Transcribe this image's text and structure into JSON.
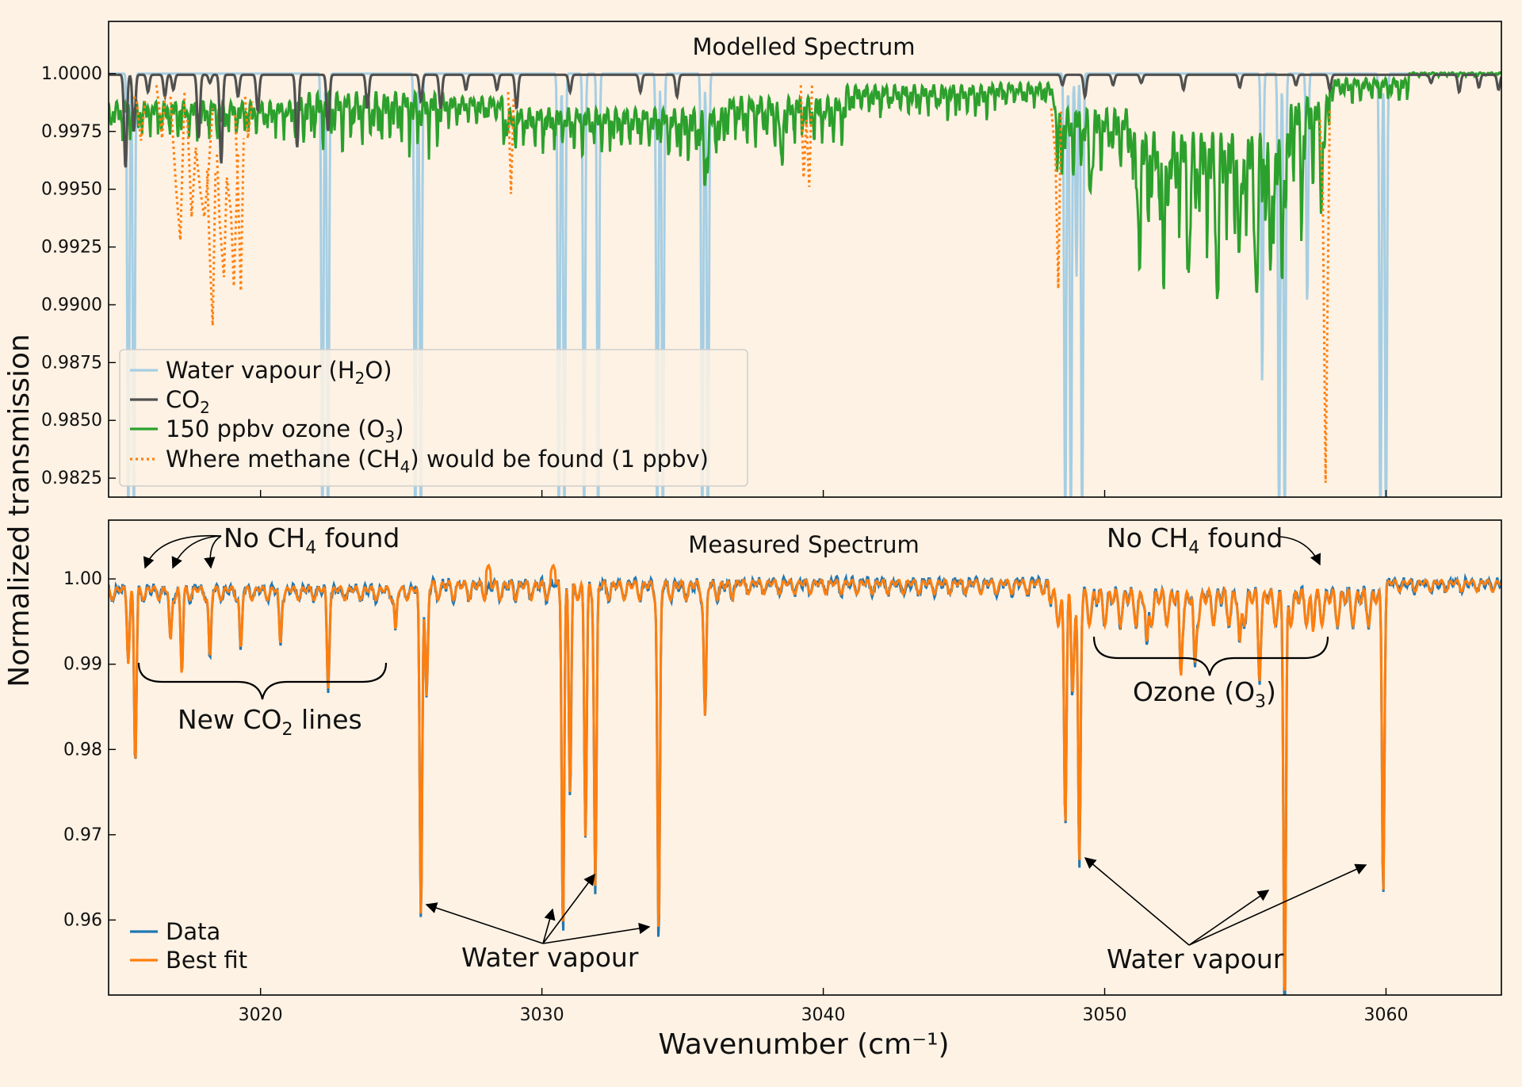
{
  "figure": {
    "background": "#fdf2e4",
    "ylabel": "Normalized transmission",
    "xlabel": "Wavenumber (cm⁻¹)"
  },
  "chart_data": [
    {
      "type": "line",
      "title": "Modelled Spectrum",
      "xlim": [
        3014.6,
        3064.1
      ],
      "ylim": [
        0.98168,
        1.00226
      ],
      "x_ticks": [
        3020,
        3030,
        3040,
        3050,
        3060
      ],
      "y_ticks": [
        1.0,
        0.9975,
        0.995,
        0.9925,
        0.99,
        0.9875,
        0.985,
        0.9825
      ],
      "y_tick_labels": [
        "1.0000",
        "0.9975",
        "0.9950",
        "0.9925",
        "0.9900",
        "0.9875",
        "0.9850",
        "0.9825"
      ],
      "x_tick_labels_shown": false,
      "grid": false,
      "legend_position": "bottom-left",
      "series": [
        {
          "name": "Water vapour (H₂O)",
          "color": "#a6cee3",
          "style": "solid",
          "baseline": 1.0,
          "lines": [
            [
              3015.3,
              0.98
            ],
            [
              3015.5,
              0.98
            ],
            [
              3022.2,
              0.98
            ],
            [
              3022.4,
              0.98
            ],
            [
              3025.5,
              0.98
            ],
            [
              3025.7,
              0.98
            ],
            [
              3030.6,
              0.98
            ],
            [
              3030.8,
              0.98
            ],
            [
              3031.5,
              0.98
            ],
            [
              3032.0,
              0.98
            ],
            [
              3034.1,
              0.98
            ],
            [
              3034.3,
              0.98
            ],
            [
              3035.7,
              0.98
            ],
            [
              3035.9,
              0.98
            ],
            [
              3048.6,
              0.98
            ],
            [
              3048.8,
              0.98
            ],
            [
              3049.0,
              0.9912
            ],
            [
              3049.2,
              0.98
            ],
            [
              3055.6,
              0.9866
            ],
            [
              3056.2,
              0.98
            ],
            [
              3056.4,
              0.98
            ],
            [
              3057.2,
              0.99
            ],
            [
              3059.8,
              0.98
            ],
            [
              3060.0,
              0.98
            ]
          ]
        },
        {
          "name": "CO₂",
          "color": "#505050",
          "style": "solid",
          "baseline": 0.99995,
          "lines": [
            [
              3015.2,
              0.9959
            ],
            [
              3015.5,
              0.9975
            ],
            [
              3016.0,
              0.9992
            ],
            [
              3016.6,
              0.999
            ],
            [
              3016.9,
              0.9993
            ],
            [
              3017.8,
              0.9972
            ],
            [
              3018.2,
              0.9996
            ],
            [
              3018.6,
              0.9961
            ],
            [
              3019.2,
              0.999
            ],
            [
              3019.9,
              0.9984
            ],
            [
              3021.3,
              0.9968
            ],
            [
              3022.4,
              0.9975
            ],
            [
              3023.8,
              0.9985
            ],
            [
              3025.7,
              0.9988
            ],
            [
              3026.4,
              0.9985
            ],
            [
              3027.3,
              0.9993
            ],
            [
              3028.4,
              0.9993
            ],
            [
              3029.1,
              0.9985
            ],
            [
              3031.0,
              0.9992
            ],
            [
              3033.5,
              0.9992
            ],
            [
              3034.8,
              0.999
            ],
            [
              3048.5,
              0.9995
            ],
            [
              3049.3,
              0.999
            ],
            [
              3050.3,
              0.9995
            ],
            [
              3051.3,
              0.9996
            ],
            [
              3052.8,
              0.9993
            ],
            [
              3054.8,
              0.9994
            ],
            [
              3056.8,
              0.9995
            ],
            [
              3058.0,
              0.9993
            ],
            [
              3061.6,
              0.9996
            ],
            [
              3062.6,
              0.9992
            ],
            [
              3063.3,
              0.9994
            ],
            [
              3064.0,
              0.9993
            ]
          ]
        },
        {
          "name": "150 ppbv ozone (O₃)",
          "color": "#2ca02c",
          "style": "solid",
          "regions": [
            [
              3014.6,
              3021.4,
              0.9968,
              0.9988
            ],
            [
              3021.4,
              3026.5,
              0.9962,
              0.9992
            ],
            [
              3026.5,
              3028.6,
              0.9975,
              0.999
            ],
            [
              3028.6,
              3034.4,
              0.9962,
              0.9985
            ],
            [
              3034.4,
              3036.5,
              0.9955,
              0.9985
            ],
            [
              3036.5,
              3040.8,
              0.9965,
              0.999
            ],
            [
              3040.8,
              3046.0,
              0.9978,
              0.9995
            ],
            [
              3046.0,
              3048.3,
              0.9982,
              0.9996
            ],
            [
              3048.3,
              3051.0,
              0.995,
              0.9985
            ],
            [
              3051.0,
              3056.6,
              0.992,
              0.9975
            ],
            [
              3056.6,
              3058.0,
              0.995,
              0.999
            ],
            [
              3058.0,
              3060.8,
              0.9985,
              0.9998
            ],
            [
              3060.8,
              3064.1,
              0.99985,
              1.00005
            ]
          ],
          "deep_lines": [
            [
              3035.8,
              0.995
            ],
            [
              3038.5,
              0.9955
            ],
            [
              3048.3,
              0.9962
            ],
            [
              3049.5,
              0.995
            ],
            [
              3051.2,
              0.9942
            ],
            [
              3052.1,
              0.9905
            ],
            [
              3053.0,
              0.992
            ],
            [
              3054.0,
              0.9904
            ],
            [
              3054.8,
              0.9922
            ],
            [
              3055.4,
              0.9895
            ],
            [
              3055.9,
              0.991
            ],
            [
              3056.3,
              0.993
            ],
            [
              3057.0,
              0.9938
            ],
            [
              3057.7,
              0.995
            ]
          ]
        },
        {
          "name": "Where methane (CH₄) would be found (1 ppbv)",
          "color": "#ff7f0e",
          "style": "dotted",
          "segments": [
            {
              "x": [
                3015.5,
                3015.6,
                3015.75,
                3015.9
              ],
              "y": [
                0.999,
                0.9988,
                0.9971,
                0.9988
              ]
            },
            {
              "x": [
                3016.3,
                3016.4,
                3016.5,
                3016.6
              ],
              "y": [
                0.9995,
                0.9985,
                0.9972,
                0.999
              ]
            },
            {
              "x": [
                3016.8,
                3017.0,
                3017.15,
                3017.3
              ],
              "y": [
                0.999,
                0.995,
                0.9928,
                0.9992
              ]
            },
            {
              "x": [
                3017.4,
                3017.55,
                3017.7,
                3017.85,
                3018.0,
                3018.15,
                3018.3
              ],
              "y": [
                0.998,
                0.9938,
                0.9968,
                0.995,
                0.9938,
                0.9958,
                0.9985
              ]
            },
            {
              "x": [
                3018.1,
                3018.2,
                3018.3,
                3018.4
              ],
              "y": [
                0.9958,
                0.992,
                0.9891,
                0.9958
              ]
            },
            {
              "x": [
                3018.45,
                3018.55,
                3018.7,
                3018.8,
                3018.95,
                3019.05,
                3019.2
              ],
              "y": [
                0.9965,
                0.9935,
                0.9912,
                0.9955,
                0.994,
                0.9908,
                0.9965
              ]
            },
            {
              "x": [
                3019.1,
                3019.2,
                3019.3,
                3019.4
              ],
              "y": [
                0.9982,
                0.995,
                0.9906,
                0.9972
              ]
            },
            {
              "x": [
                3019.45,
                3019.55,
                3019.7
              ],
              "y": [
                0.999,
                0.9972,
                0.9988
              ]
            },
            {
              "x": [
                3028.8,
                3028.9,
                3029.0
              ],
              "y": [
                0.9992,
                0.9948,
                0.999
              ]
            },
            {
              "x": [
                3039.2,
                3039.3,
                3039.4,
                3039.5,
                3039.6
              ],
              "y": [
                0.9995,
                0.9955,
                0.998,
                0.9951,
                0.9995
              ]
            },
            {
              "x": [
                3048.1,
                3048.25,
                3048.35,
                3048.45
              ],
              "y": [
                0.9985,
                0.9965,
                0.9907,
                0.9985
              ]
            },
            {
              "x": [
                3057.65,
                3057.75,
                3057.85,
                3058.0
              ],
              "y": [
                0.998,
                0.995,
                0.9823,
                0.9985
              ]
            }
          ]
        }
      ]
    },
    {
      "type": "line",
      "title": "Measured Spectrum",
      "xlim": [
        3014.6,
        3064.1
      ],
      "ylim": [
        0.9512,
        1.0069
      ],
      "x_ticks": [
        3020,
        3030,
        3040,
        3050,
        3060
      ],
      "x_tick_labels": [
        "3020",
        "3030",
        "3040",
        "3050",
        "3060"
      ],
      "y_ticks": [
        1.0,
        0.99,
        0.98,
        0.97,
        0.96
      ],
      "y_tick_labels": [
        "1.00",
        "0.99",
        "0.98",
        "0.97",
        "0.96"
      ],
      "grid": false,
      "legend_position": "bottom-left",
      "series": [
        {
          "name": "Data",
          "color": "#1f77b4",
          "style": "solid"
        },
        {
          "name": "Best fit",
          "color": "#ff7f0e",
          "style": "solid"
        }
      ],
      "baseline_regions": [
        [
          3014.6,
          3026.0,
          0.9975,
          0.9995
        ],
        [
          3026.0,
          3036.8,
          0.9975,
          1.0003
        ],
        [
          3036.8,
          3048.0,
          0.9982,
          1.0003
        ],
        [
          3048.0,
          3059.8,
          0.9945,
          0.9998
        ],
        [
          3059.8,
          3064.1,
          0.9985,
          1.0002
        ]
      ],
      "absorption_lines": [
        [
          3015.3,
          0.9922
        ],
        [
          3015.55,
          0.9795
        ],
        [
          3016.8,
          0.9934
        ],
        [
          3017.2,
          0.99
        ],
        [
          3018.2,
          0.9915
        ],
        [
          3019.3,
          0.9925
        ],
        [
          3020.7,
          0.9935
        ],
        [
          3022.4,
          0.989
        ],
        [
          3024.8,
          0.9948
        ],
        [
          3025.7,
          0.962
        ],
        [
          3025.9,
          0.987
        ],
        [
          3030.75,
          0.9605
        ],
        [
          3031.0,
          0.9755
        ],
        [
          3031.55,
          0.9705
        ],
        [
          3031.9,
          0.965
        ],
        [
          3034.15,
          0.958
        ],
        [
          3035.8,
          0.9843
        ],
        [
          3048.6,
          0.9735
        ],
        [
          3048.85,
          0.9905
        ],
        [
          3049.1,
          0.9685
        ],
        [
          3051.5,
          0.9935
        ],
        [
          3052.7,
          0.9925
        ],
        [
          3053.2,
          0.992
        ],
        [
          3054.8,
          0.9935
        ],
        [
          3055.5,
          0.993
        ],
        [
          3056.4,
          0.951
        ],
        [
          3057.4,
          0.996
        ],
        [
          3059.9,
          0.9642
        ]
      ],
      "bestfit_spikes": [
        [
          3028.1,
          1.0017
        ],
        [
          3030.4,
          1.0017
        ]
      ]
    }
  ],
  "annotations": {
    "no_ch4_left": {
      "pre": "No CH",
      "sub": "4",
      "post": " found"
    },
    "no_ch4_right": {
      "pre": "No CH",
      "sub": "4",
      "post": " found"
    },
    "new_co2": {
      "pre": "New CO",
      "sub": "2",
      "post": " lines"
    },
    "ozone": {
      "pre": "Ozone (O",
      "sub": "3",
      "post": ")"
    },
    "water_left": "Water vapour",
    "water_right": "Water vapour"
  },
  "legend_top": [
    {
      "pre": "Water vapour (H",
      "sub": "2",
      "post": "O)"
    },
    {
      "pre": "CO",
      "sub": "2",
      "post": ""
    },
    {
      "pre": "150 ppbv ozone (O",
      "sub": "3",
      "post": ")"
    },
    {
      "pre": "Where methane (CH",
      "sub": "4",
      "post": ") would be found (1 ppbv)"
    }
  ],
  "legend_bottom": [
    "Data",
    "Best fit"
  ]
}
